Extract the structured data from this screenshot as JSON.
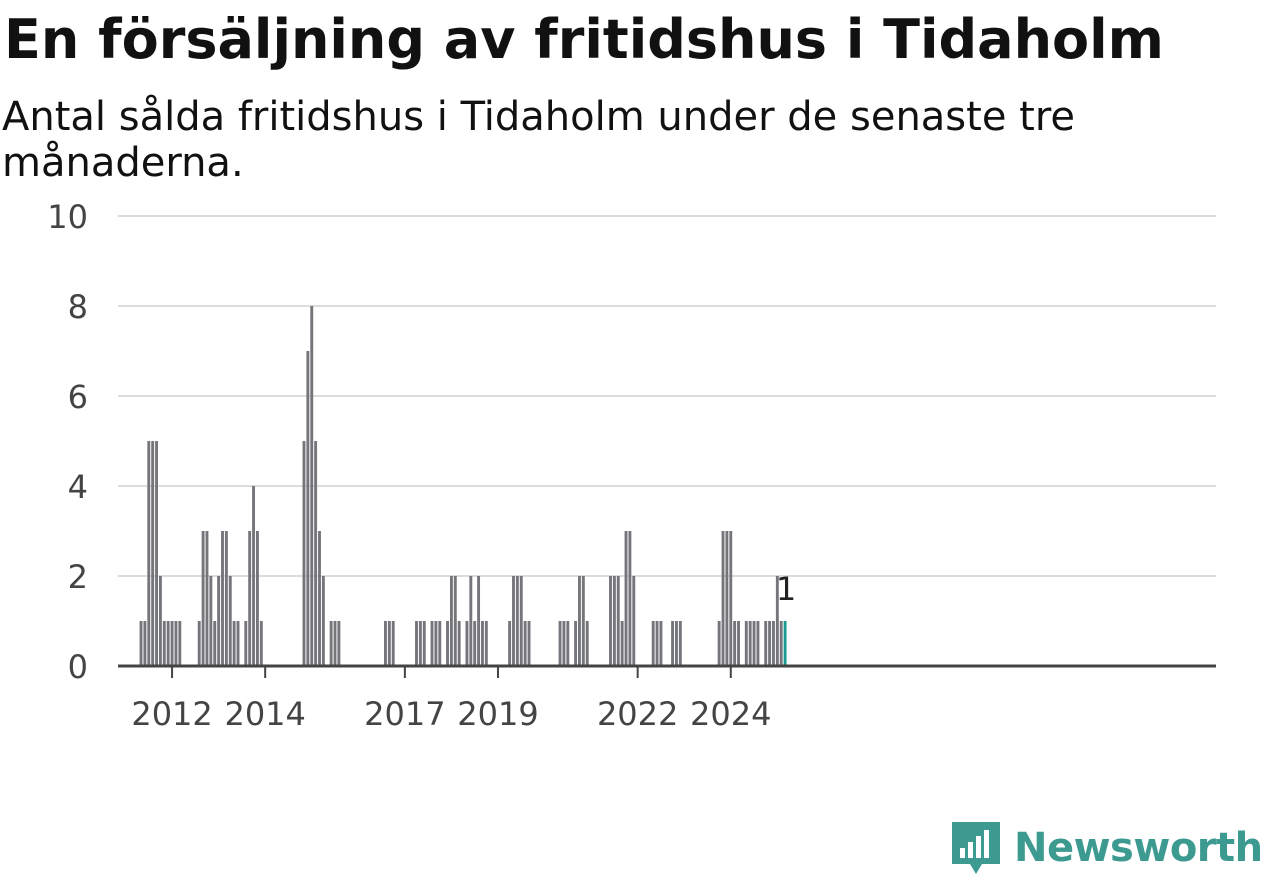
{
  "header": {
    "title": "En försäljning av fritidshus i Tidaholm",
    "subtitle": "Antal sålda fritidshus i Tidaholm under de senaste tre månaderna."
  },
  "brand": {
    "name": "Newsworthy",
    "icon": "newsworthy-logo-icon",
    "color": "#3c9a91"
  },
  "chart_data": {
    "type": "bar",
    "ylim": [
      0,
      10
    ],
    "yticks": [
      0,
      2,
      4,
      6,
      8,
      10
    ],
    "grid": true,
    "bar_color": "#75757c",
    "highlight_color": "#1a9b8f",
    "xticks": [
      {
        "label": "2012",
        "month": 12
      },
      {
        "label": "2014",
        "month": 36
      },
      {
        "label": "2017",
        "month": 72
      },
      {
        "label": "2019",
        "month": 96
      },
      {
        "label": "2022",
        "month": 132
      },
      {
        "label": "2024",
        "month": 156
      }
    ],
    "start_month_index": 4,
    "values": [
      1,
      1,
      5,
      5,
      5,
      2,
      1,
      1,
      1,
      1,
      1,
      0,
      0,
      0,
      0,
      1,
      3,
      3,
      2,
      1,
      2,
      3,
      3,
      2,
      1,
      1,
      0,
      1,
      3,
      4,
      3,
      1,
      0,
      0,
      0,
      0,
      0,
      0,
      0,
      0,
      0,
      0,
      5,
      7,
      8,
      5,
      3,
      2,
      0,
      1,
      1,
      1,
      0,
      0,
      0,
      0,
      0,
      0,
      0,
      0,
      0,
      0,
      0,
      1,
      1,
      1,
      0,
      0,
      0,
      0,
      0,
      1,
      1,
      1,
      0,
      1,
      1,
      1,
      0,
      1,
      2,
      2,
      1,
      0,
      1,
      2,
      1,
      2,
      1,
      1,
      0,
      0,
      0,
      0,
      0,
      1,
      2,
      2,
      2,
      1,
      1,
      0,
      0,
      0,
      0,
      0,
      0,
      0,
      1,
      1,
      1,
      0,
      1,
      2,
      2,
      1,
      0,
      0,
      0,
      0,
      0,
      2,
      2,
      2,
      1,
      3,
      3,
      2,
      0,
      0,
      0,
      0,
      1,
      1,
      1,
      0,
      0,
      1,
      1,
      1,
      0,
      0,
      0,
      0,
      0,
      0,
      0,
      0,
      0,
      1,
      3,
      3,
      3,
      1,
      1,
      0,
      1,
      1,
      1,
      1,
      0,
      1,
      1,
      1,
      2,
      1,
      1
    ],
    "highlight_last": true,
    "annotation": {
      "text": "1"
    }
  }
}
